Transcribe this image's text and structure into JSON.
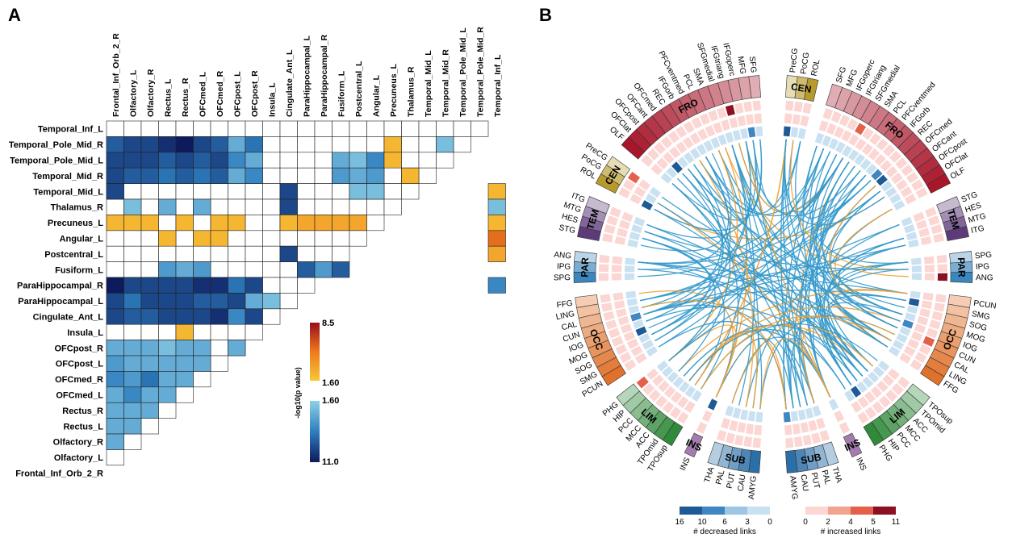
{
  "panels": {
    "a": "A",
    "b": "B"
  },
  "chart_data": [
    {
      "type": "heatmap",
      "title": "",
      "regions": [
        "Frontal_Inf_Orb_2_R",
        "Olfactory_L",
        "Olfactory_R",
        "Rectus_L",
        "Rectus_R",
        "OFCmed_L",
        "OFCmed_R",
        "OFCpost_L",
        "OFCpost_R",
        "Insula_L",
        "Cingulate_Ant_L",
        "ParaHippocampal_L",
        "ParaHippocampal_R",
        "Fusiform_L",
        "Postcentral_L",
        "Angular_L",
        "Precuneus_L",
        "Thalamus_R",
        "Temporal_Mid_L",
        "Temporal_Mid_R",
        "Temporal_Pole_Mid_L",
        "Temporal_Pole_Mid_R",
        "Temporal_Inf_L"
      ],
      "legend": {
        "increased": {
          "max": "8.5",
          "min": "1.60",
          "colors": [
            "#f7c738",
            "#ee7a1c",
            "#9a0d1c"
          ]
        },
        "decreased": {
          "min": "1.60",
          "max": "11.0",
          "colors": [
            "#8fd0e6",
            "#2f7fbf",
            "#0d1a5c"
          ]
        },
        "axis_label": "-log10(p value)"
      },
      "cells": [
        [
          1,
          0,
          "d",
          7
        ],
        [
          1,
          1,
          "d",
          8
        ],
        [
          1,
          2,
          "d",
          8
        ],
        [
          1,
          3,
          "d",
          9
        ],
        [
          1,
          4,
          "d",
          10
        ],
        [
          1,
          5,
          "d",
          8
        ],
        [
          1,
          6,
          "d",
          7
        ],
        [
          1,
          7,
          "d",
          3
        ],
        [
          1,
          8,
          "d",
          6
        ],
        [
          1,
          16,
          "i",
          2
        ],
        [
          1,
          19,
          "d",
          2
        ],
        [
          2,
          0,
          "d",
          8
        ],
        [
          2,
          1,
          "d",
          8
        ],
        [
          2,
          2,
          "d",
          8
        ],
        [
          2,
          3,
          "d",
          7
        ],
        [
          2,
          4,
          "d",
          8
        ],
        [
          2,
          5,
          "d",
          7
        ],
        [
          2,
          6,
          "d",
          8
        ],
        [
          2,
          7,
          "d",
          5
        ],
        [
          2,
          8,
          "d",
          3
        ],
        [
          2,
          13,
          "d",
          3
        ],
        [
          2,
          14,
          "d",
          2
        ],
        [
          2,
          15,
          "d",
          5
        ],
        [
          2,
          16,
          "i",
          2
        ],
        [
          3,
          0,
          "d",
          8
        ],
        [
          3,
          1,
          "d",
          7
        ],
        [
          3,
          2,
          "d",
          7
        ],
        [
          3,
          3,
          "d",
          6
        ],
        [
          3,
          4,
          "d",
          7
        ],
        [
          3,
          5,
          "d",
          6
        ],
        [
          3,
          6,
          "d",
          7
        ],
        [
          3,
          7,
          "d",
          3
        ],
        [
          3,
          8,
          "d",
          5
        ],
        [
          3,
          13,
          "d",
          4
        ],
        [
          3,
          14,
          "d",
          3
        ],
        [
          3,
          15,
          "d",
          4
        ],
        [
          3,
          17,
          "i",
          2
        ],
        [
          4,
          0,
          "d",
          8
        ],
        [
          4,
          10,
          "d",
          8
        ],
        [
          4,
          14,
          "d",
          2
        ],
        [
          4,
          15,
          "d",
          2
        ],
        [
          4,
          22,
          "i",
          2
        ],
        [
          5,
          1,
          "d",
          2
        ],
        [
          5,
          3,
          "d",
          3
        ],
        [
          5,
          5,
          "d",
          3
        ],
        [
          5,
          10,
          "d",
          8
        ],
        [
          5,
          22,
          "d",
          2
        ],
        [
          6,
          0,
          "i",
          2
        ],
        [
          6,
          1,
          "i",
          2
        ],
        [
          6,
          2,
          "i",
          2
        ],
        [
          6,
          4,
          "i",
          2
        ],
        [
          6,
          6,
          "i",
          2
        ],
        [
          6,
          7,
          "i",
          2
        ],
        [
          6,
          10,
          "i",
          2
        ],
        [
          6,
          11,
          "i",
          3
        ],
        [
          6,
          12,
          "i",
          3
        ],
        [
          6,
          13,
          "i",
          3
        ],
        [
          6,
          14,
          "i",
          3
        ],
        [
          6,
          22,
          "i",
          2
        ],
        [
          7,
          3,
          "i",
          2
        ],
        [
          7,
          5,
          "i",
          2
        ],
        [
          7,
          6,
          "i",
          2
        ],
        [
          7,
          22,
          "i",
          6
        ],
        [
          8,
          10,
          "d",
          8
        ],
        [
          8,
          22,
          "i",
          3
        ],
        [
          9,
          3,
          "d",
          4
        ],
        [
          9,
          4,
          "d",
          3
        ],
        [
          9,
          5,
          "d",
          4
        ],
        [
          9,
          11,
          "d",
          7
        ],
        [
          9,
          12,
          "d",
          4
        ],
        [
          9,
          13,
          "d",
          7
        ],
        [
          10,
          0,
          "d",
          10
        ],
        [
          10,
          1,
          "d",
          8
        ],
        [
          10,
          2,
          "d",
          8
        ],
        [
          10,
          3,
          "d",
          8
        ],
        [
          10,
          4,
          "d",
          8
        ],
        [
          10,
          5,
          "d",
          9
        ],
        [
          10,
          6,
          "d",
          9
        ],
        [
          10,
          7,
          "d",
          6
        ],
        [
          10,
          8,
          "d",
          8
        ],
        [
          10,
          22,
          "d",
          5
        ],
        [
          11,
          0,
          "d",
          8
        ],
        [
          11,
          1,
          "d",
          6
        ],
        [
          11,
          2,
          "d",
          8
        ],
        [
          11,
          3,
          "d",
          8
        ],
        [
          11,
          4,
          "d",
          8
        ],
        [
          11,
          5,
          "d",
          7
        ],
        [
          11,
          6,
          "d",
          7
        ],
        [
          11,
          7,
          "d",
          8
        ],
        [
          11,
          8,
          "d",
          3
        ],
        [
          11,
          9,
          "d",
          2
        ],
        [
          12,
          0,
          "d",
          8
        ],
        [
          12,
          1,
          "d",
          7
        ],
        [
          12,
          2,
          "d",
          7
        ],
        [
          12,
          3,
          "d",
          8
        ],
        [
          12,
          4,
          "d",
          8
        ],
        [
          12,
          5,
          "d",
          8
        ],
        [
          12,
          6,
          "d",
          9
        ],
        [
          12,
          7,
          "d",
          5
        ],
        [
          12,
          8,
          "d",
          8
        ],
        [
          13,
          4,
          "i",
          2
        ],
        [
          14,
          0,
          "d",
          3
        ],
        [
          14,
          1,
          "d",
          3
        ],
        [
          14,
          2,
          "d",
          3
        ],
        [
          14,
          3,
          "d",
          2
        ],
        [
          14,
          4,
          "d",
          3
        ],
        [
          14,
          5,
          "d",
          3
        ],
        [
          14,
          7,
          "d",
          3
        ],
        [
          15,
          0,
          "d",
          4
        ],
        [
          15,
          1,
          "d",
          3
        ],
        [
          15,
          2,
          "d",
          3
        ],
        [
          15,
          3,
          "d",
          3
        ],
        [
          15,
          4,
          "d",
          3
        ],
        [
          15,
          5,
          "d",
          3
        ],
        [
          16,
          0,
          "d",
          5
        ],
        [
          16,
          1,
          "d",
          4
        ],
        [
          16,
          2,
          "d",
          6
        ],
        [
          16,
          3,
          "d",
          3
        ],
        [
          16,
          4,
          "d",
          3
        ],
        [
          17,
          0,
          "d",
          3
        ],
        [
          17,
          1,
          "d",
          5
        ],
        [
          17,
          2,
          "d",
          3
        ],
        [
          17,
          3,
          "d",
          3
        ],
        [
          18,
          0,
          "d",
          3
        ],
        [
          18,
          1,
          "d",
          3
        ],
        [
          18,
          2,
          "d",
          3
        ],
        [
          19,
          0,
          "d",
          3
        ],
        [
          19,
          1,
          "d",
          3
        ],
        [
          20,
          0,
          "d",
          3
        ]
      ]
    },
    {
      "type": "chord",
      "title": "",
      "left_groups": [
        {
          "name": "FRO",
          "regions": [
            "OLF",
            "OFClat",
            "OFCpost",
            "OFCant",
            "OFCmed",
            "REC",
            "IFGorb",
            "PFCventmed",
            "PCL",
            "SMA",
            "SFGmedial",
            "IFGtriang",
            "IFGoperc",
            "MFG",
            "SFG"
          ]
        },
        {
          "name": "CEN",
          "regions": [
            "ROL",
            "PoCG",
            "PreCG"
          ]
        },
        {
          "name": "TEM",
          "regions": [
            "STG",
            "HES",
            "MTG",
            "ITG"
          ]
        },
        {
          "name": "PAR",
          "regions": [
            "SPG",
            "IPG",
            "ANG"
          ]
        },
        {
          "name": "OCC",
          "regions": [
            "PCUN",
            "SMG",
            "SOG",
            "MOG",
            "IOG",
            "CUN",
            "CAL",
            "LING",
            "FFG"
          ]
        },
        {
          "name": "LIM",
          "regions": [
            "TPOsup",
            "TPOmid",
            "ACC",
            "MCC",
            "PCC",
            "HIP",
            "PHG"
          ]
        },
        {
          "name": "INS",
          "regions": [
            "INS"
          ]
        },
        {
          "name": "SUB",
          "regions": [
            "AMYG",
            "CAU",
            "PUT",
            "PAL",
            "THA"
          ]
        }
      ],
      "right_groups": [
        {
          "name": "CEN",
          "regions": [
            "PreCG",
            "PoCG",
            "ROL"
          ]
        },
        {
          "name": "FRO",
          "regions": [
            "SFG",
            "MFG",
            "IFGoperc",
            "IFGtriang",
            "SFGmedial",
            "SMA",
            "PCL",
            "PFCventmed",
            "IFGorb",
            "REC",
            "OFCmed",
            "OFCant",
            "OFCpost",
            "OFClat",
            "OLF"
          ]
        },
        {
          "name": "TEM",
          "regions": [
            "STG",
            "HES",
            "MTG",
            "ITG"
          ]
        },
        {
          "name": "PAR",
          "regions": [
            "SPG",
            "IPG",
            "ANG"
          ]
        },
        {
          "name": "OCC",
          "regions": [
            "PCUN",
            "SMG",
            "SOG",
            "MOG",
            "IOG",
            "CUN",
            "CAL",
            "LING",
            "FFG"
          ]
        },
        {
          "name": "LIM",
          "regions": [
            "TPOsup",
            "TPOmid",
            "ACC",
            "MCC",
            "PCC",
            "HIP",
            "PHG"
          ]
        },
        {
          "name": "INS",
          "regions": [
            "INS"
          ]
        },
        {
          "name": "SUB",
          "regions": [
            "THA",
            "PAL",
            "PUT",
            "CAU",
            "AMYG"
          ]
        }
      ],
      "group_colors": {
        "FRO": "#a8162a",
        "CEN": "#b79a2b",
        "TEM": "#5d3a7a",
        "PAR": "#3a86bd",
        "OCC": "#e0712a",
        "LIM": "#2f8a3a",
        "INS": "#7a3d8a",
        "SUB": "#2b6fa8"
      },
      "decreased_scale": {
        "labels": [
          "16",
          "10",
          "6",
          "3",
          "0"
        ],
        "title": "# decreased links",
        "colors": [
          "#1e5a96",
          "#3f86c2",
          "#9cc6e4",
          "#c9e1f1"
        ]
      },
      "increased_scale": {
        "labels": [
          "0",
          "2",
          "4",
          "5",
          "11"
        ],
        "title": "# increased links",
        "colors": [
          "#fbd6d3",
          "#f2a38f",
          "#e4604a",
          "#8b1022"
        ]
      },
      "link_colors": {
        "decreased": "#3399cc",
        "increased": "#f0a030"
      }
    }
  ]
}
